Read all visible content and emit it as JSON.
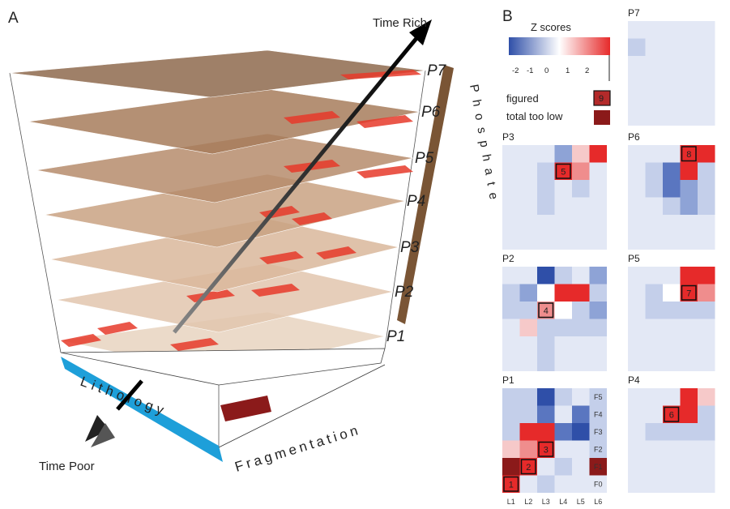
{
  "panel_a": {
    "letter": "A",
    "time_rich": "Time Rich",
    "time_poor": "Time Poor",
    "lithology": "Lithology",
    "fragmentation": "Fragmentation",
    "phosphate": "Phosphate",
    "levels": [
      "P1",
      "P2",
      "P3",
      "P4",
      "P5",
      "P6",
      "P7"
    ]
  },
  "panel_b": {
    "letter": "B",
    "legend": {
      "title": "Z scores",
      "ticks": [
        "-2",
        "-1",
        "0",
        "1",
        "2"
      ],
      "figured": "figured",
      "too_low": "total too low",
      "figured_example": "9",
      "colors": {
        "neg": "#2f4fa8",
        "mid": "#ffffff",
        "pos": "#e62a2a",
        "dark": "#8b1a1a"
      }
    },
    "frag_labels": [
      "F5",
      "F4",
      "F3",
      "F2",
      "F1",
      "F0"
    ],
    "lith_labels": [
      "L1",
      "L2",
      "L3",
      "L4",
      "L5",
      "L6"
    ],
    "panels": [
      {
        "name": "P7",
        "figured": [
          {
            "label": "9"
          }
        ]
      },
      {
        "name": "P3",
        "figured": [
          {
            "label": "5"
          }
        ]
      },
      {
        "name": "P6",
        "figured": [
          {
            "label": "8"
          }
        ]
      },
      {
        "name": "P2",
        "figured": [
          {
            "label": "4"
          }
        ]
      },
      {
        "name": "P5",
        "figured": [
          {
            "label": "7"
          }
        ]
      },
      {
        "name": "P1",
        "figured": [
          {
            "label": "1"
          },
          {
            "label": "2"
          },
          {
            "label": "3"
          }
        ]
      },
      {
        "name": "P4",
        "figured": [
          {
            "label": "6"
          }
        ]
      }
    ]
  }
}
